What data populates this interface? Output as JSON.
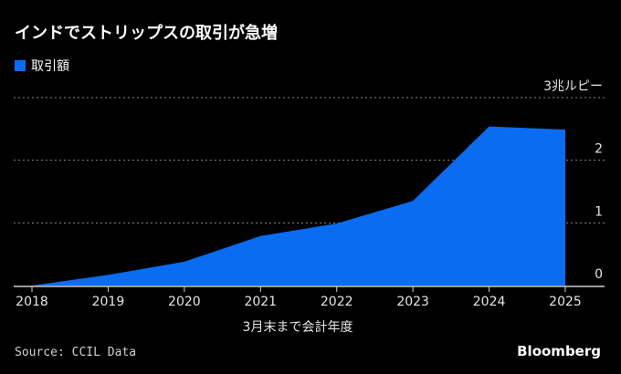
{
  "header": {
    "title": "インドでストリップスの取引が急増"
  },
  "legend": {
    "label": "取引額",
    "color": "#0a6cf0"
  },
  "footer": {
    "source": "Source: CCIL Data",
    "brand": "Bloomberg"
  },
  "chart_data": {
    "type": "area",
    "title": "インドでストリップスの取引が急増",
    "series": [
      {
        "name": "取引額",
        "color": "#0a6cf0",
        "values": [
          0.0,
          0.17,
          0.38,
          0.79,
          0.99,
          1.35,
          2.54,
          2.49
        ]
      }
    ],
    "x": [
      "2018",
      "2019",
      "2020",
      "2021",
      "2022",
      "2023",
      "2024",
      "2025"
    ],
    "xlabel": "3月末まで会計年度",
    "ylabel": "",
    "yunit": "3兆ルピー",
    "yticks": [
      "0",
      "1",
      "2",
      "3兆ルピー"
    ],
    "ylim": [
      0,
      3
    ],
    "grid": true,
    "legend_position": "top-left"
  }
}
